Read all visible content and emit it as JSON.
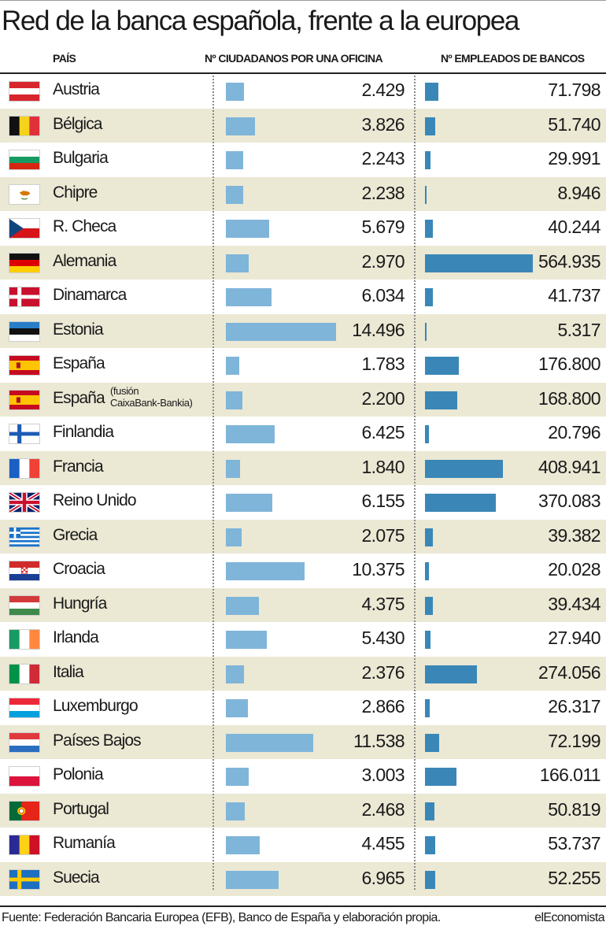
{
  "title": "Red de la banca española, frente a la europea",
  "headers": {
    "country": "PAÍS",
    "citizens": "Nº CIUDADANOS POR UNA OFICINA",
    "employees": "Nº EMPLEADOS DE BANCOS"
  },
  "colors": {
    "citizens_bar": "#7fb5d9",
    "employees_bar": "#3a87b7",
    "row_shade": "#ebe8d4"
  },
  "chart_data": {
    "type": "bar",
    "categories": [
      "Austria",
      "Bélgica",
      "Bulgaria",
      "Chipre",
      "R. Checa",
      "Alemania",
      "Dinamarca",
      "Estonia",
      "España",
      "España",
      "Finlandia",
      "Francia",
      "Reino Unido",
      "Grecia",
      "Croacia",
      "Hungría",
      "Irlanda",
      "Italia",
      "Luxemburgo",
      "Países Bajos",
      "Polonia",
      "Portugal",
      "Rumanía",
      "Suecia"
    ],
    "category_notes": [
      "",
      "",
      "",
      "",
      "",
      "",
      "",
      "",
      "",
      [
        "(fusión",
        "CaixaBank-Bankia)"
      ],
      "",
      "",
      "",
      "",
      "",
      "",
      "",
      "",
      "",
      "",
      "",
      "",
      "",
      ""
    ],
    "flags": [
      "austria-flag-icon",
      "belgium-flag-icon",
      "bulgaria-flag-icon",
      "cyprus-flag-icon",
      "czech-flag-icon",
      "germany-flag-icon",
      "denmark-flag-icon",
      "estonia-flag-icon",
      "spain-flag-icon",
      "spain-flag-icon",
      "finland-flag-icon",
      "france-flag-icon",
      "uk-flag-icon",
      "greece-flag-icon",
      "croatia-flag-icon",
      "hungary-flag-icon",
      "ireland-flag-icon",
      "italy-flag-icon",
      "luxembourg-flag-icon",
      "netherlands-flag-icon",
      "poland-flag-icon",
      "portugal-flag-icon",
      "romania-flag-icon",
      "sweden-flag-icon"
    ],
    "series": [
      {
        "name": "Nº CIUDADANOS POR UNA OFICINA",
        "values": [
          2429,
          3826,
          2243,
          2238,
          5679,
          2970,
          6034,
          14496,
          1783,
          2200,
          6425,
          1840,
          6155,
          2075,
          10375,
          4375,
          5430,
          2376,
          2866,
          11538,
          3003,
          2468,
          4455,
          6965
        ],
        "labels": [
          "2.429",
          "3.826",
          "2.243",
          "2.238",
          "5.679",
          "2.970",
          "6.034",
          "14.496",
          "1.783",
          "2.200",
          "6.425",
          "1.840",
          "6.155",
          "2.075",
          "10.375",
          "4.375",
          "5.430",
          "2.376",
          "2.866",
          "11.538",
          "3.003",
          "2.468",
          "4.455",
          "6.965"
        ],
        "max": 14496
      },
      {
        "name": "Nº EMPLEADOS DE BANCOS",
        "values": [
          71798,
          51740,
          29991,
          8946,
          40244,
          564935,
          41737,
          5317,
          176800,
          168800,
          20796,
          408941,
          370083,
          39382,
          20028,
          39434,
          27940,
          274056,
          26317,
          72199,
          166011,
          50819,
          53737,
          52255
        ],
        "labels": [
          "71.798",
          "51.740",
          "29.991",
          "8.946",
          "40.244",
          "564.935",
          "41.737",
          "5.317",
          "176.800",
          "168.800",
          "20.796",
          "408.941",
          "370.083",
          "39.382",
          "20.028",
          "39.434",
          "27.940",
          "274.056",
          "26.317",
          "72.199",
          "166.011",
          "50.819",
          "53.737",
          "52.255"
        ],
        "max": 564935
      }
    ]
  },
  "footer": {
    "source": "Fuente: Federación Bancaria Europea (EFB), Banco de España y elaboración propia.",
    "brand": "elEconomista"
  }
}
